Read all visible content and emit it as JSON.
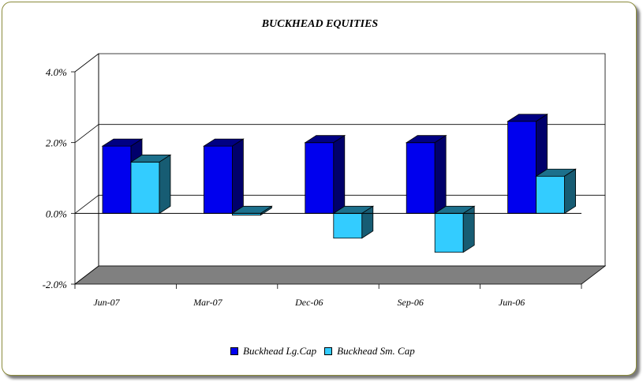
{
  "chart_data": {
    "type": "bar",
    "title": "BUCKHEAD EQUITIES",
    "categories": [
      "Jun-07",
      "Mar-07",
      "Dec-06",
      "Sep-06",
      "Jun-06"
    ],
    "series": [
      {
        "name": "Buckhead Lg.Cap",
        "values": [
          1.9,
          1.9,
          2.0,
          2.0,
          2.6
        ],
        "color": "#0000ee"
      },
      {
        "name": "Buckhead Sm. Cap",
        "values": [
          1.45,
          -0.05,
          -0.7,
          -1.1,
          1.05
        ],
        "color": "#33ccff"
      }
    ],
    "ylim": [
      -2.0,
      4.0
    ],
    "yticks": [
      "4.0%",
      "2.0%",
      "0.0%",
      "-2.0%"
    ],
    "grid": true,
    "legend": "bottom",
    "floor_color": "#808080"
  }
}
